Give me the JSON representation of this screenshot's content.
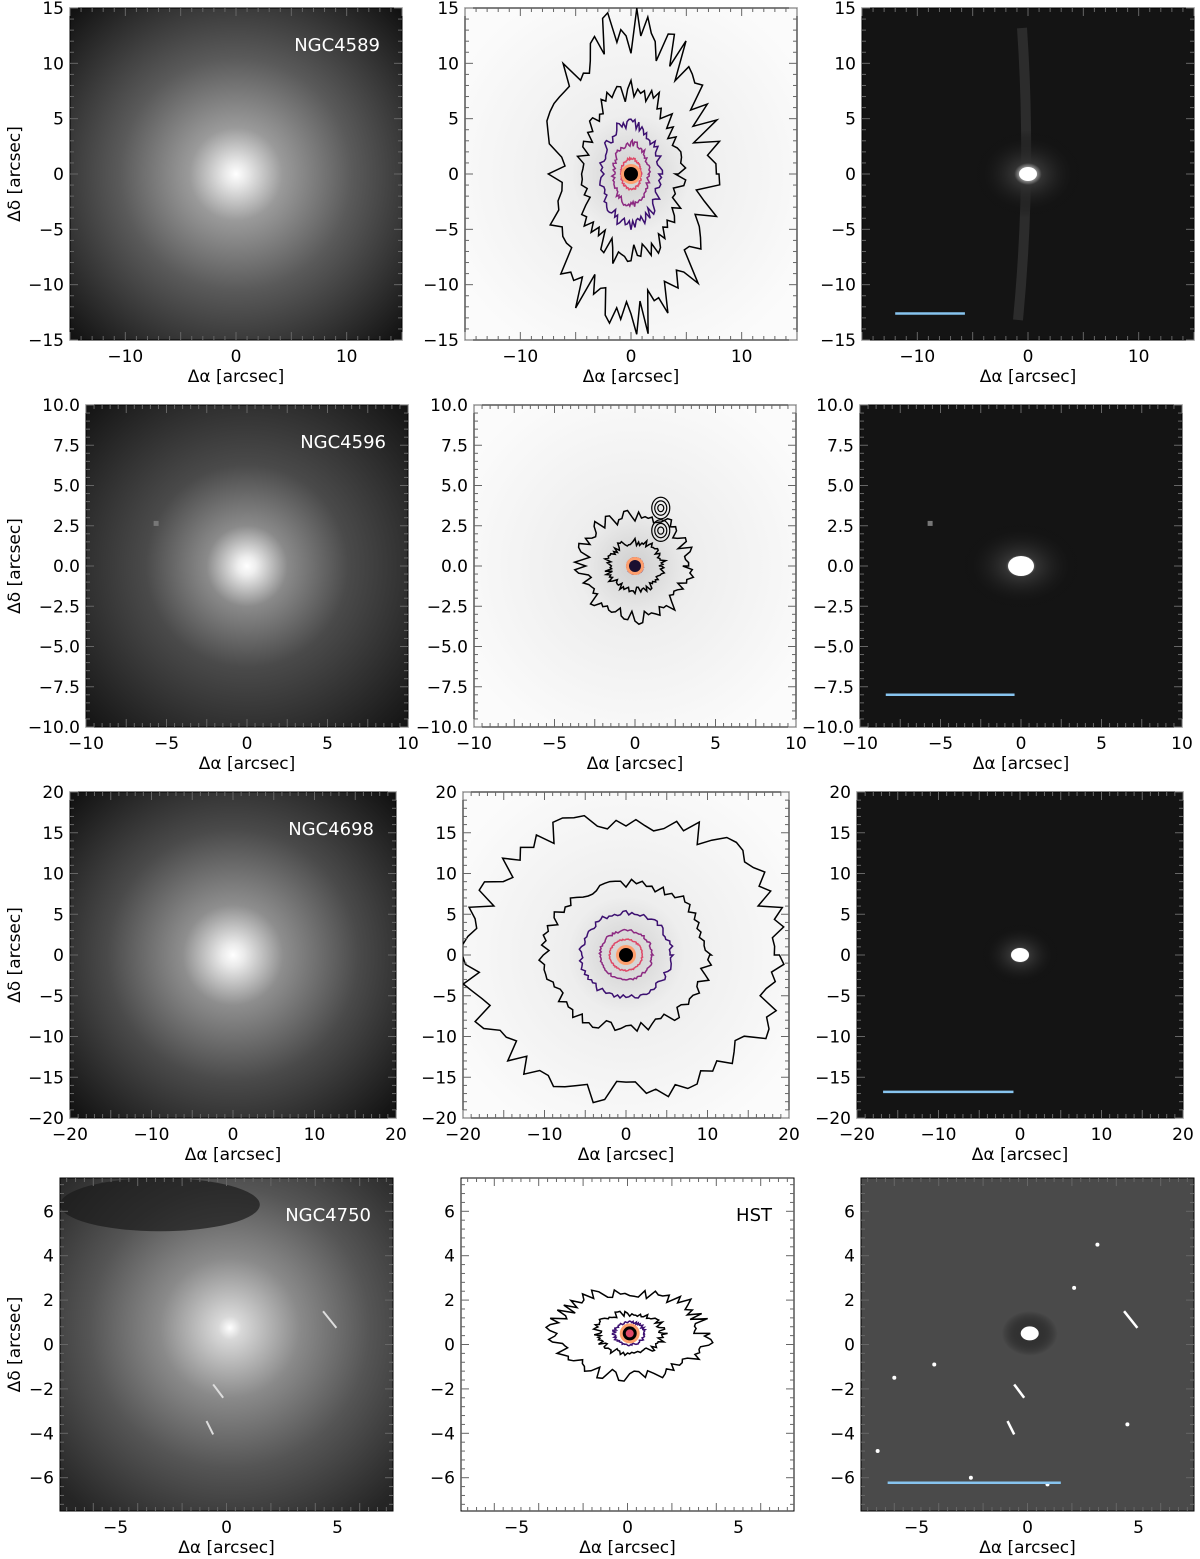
{
  "figure": {
    "x_label": "Δα [arcsec]",
    "y_label": "Δδ [arcsec]",
    "colors": {
      "scale_bar": "#87c4ef",
      "contour_outer": "#000000",
      "contour_mid": "#3b0f70",
      "contour_inner": "#8c2981",
      "contour_core": "#de4968",
      "contour_peak": "#fe9f6d",
      "contour_center": "#fcfdbf",
      "galaxy_label": "#ffffff"
    },
    "rows": [
      {
        "galaxy": "NGC4589",
        "panel_label": "",
        "axis_limits": [
          -15,
          15
        ],
        "x_ticks": [
          "−10",
          "0",
          "10"
        ],
        "y_ticks": [
          "−15",
          "−10",
          "−5",
          "0",
          "5",
          "10",
          "15"
        ]
      },
      {
        "galaxy": "NGC4596",
        "panel_label": "",
        "axis_limits": [
          -10,
          10
        ],
        "x_ticks": [
          "−10",
          "−5",
          "0",
          "5",
          "10"
        ],
        "y_ticks": [
          "−10.0",
          "−7.5",
          "−5.0",
          "−2.5",
          "0.0",
          "2.5",
          "5.0",
          "7.5",
          "10.0"
        ]
      },
      {
        "galaxy": "NGC4698",
        "panel_label": "",
        "axis_limits": [
          -20,
          20
        ],
        "x_ticks": [
          "−20",
          "−10",
          "0",
          "10",
          "20"
        ],
        "y_ticks": [
          "−20",
          "−15",
          "−10",
          "−5",
          "0",
          "5",
          "10",
          "15",
          "20"
        ]
      },
      {
        "galaxy": "NGC4750",
        "panel_label": "HST",
        "axis_limits": [
          -7.5,
          7.5
        ],
        "x_ticks": [
          "−5",
          "0",
          "5"
        ],
        "y_ticks": [
          "−6",
          "−4",
          "−2",
          "0",
          "2",
          "4",
          "6"
        ]
      }
    ]
  }
}
